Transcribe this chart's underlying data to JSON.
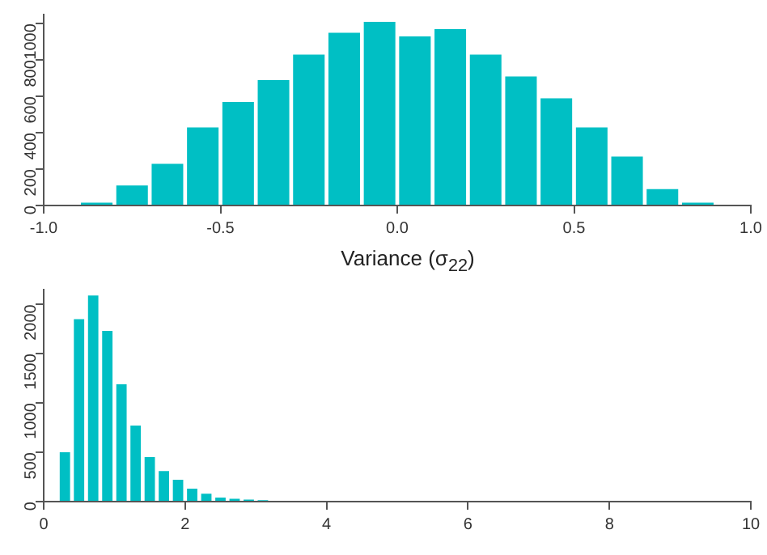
{
  "chart_data": [
    {
      "type": "histogram",
      "color": "#00bfc4",
      "bins": [
        -0.9,
        -0.8,
        -0.7,
        -0.6,
        -0.5,
        -0.4,
        -0.3,
        -0.2,
        -0.1,
        0.0,
        0.1,
        0.2,
        0.3,
        0.4,
        0.5,
        0.6,
        0.7,
        0.8,
        0.9
      ],
      "values": [
        20,
        120,
        240,
        440,
        580,
        700,
        840,
        960,
        1020,
        940,
        980,
        840,
        720,
        600,
        440,
        280,
        100,
        20
      ],
      "xlim": [
        -1,
        1
      ],
      "xticks": [
        {
          "value": -1,
          "label": "-1.0"
        },
        -0.5,
        {
          "value": 0,
          "label": "0.0"
        },
        0.5,
        {
          "value": 1,
          "label": "1.0"
        }
      ],
      "ylim": [
        0,
        1050
      ],
      "yticks": [
        0,
        200,
        400,
        600,
        800,
        1000
      ],
      "grid": false
    },
    {
      "type": "histogram",
      "title": "Variance (σ$_{22}$)",
      "color": "#00bfc4",
      "bins": [
        0.2,
        0.4,
        0.6,
        0.8,
        1.0,
        1.2,
        1.4,
        1.6,
        1.8,
        2.0,
        2.2,
        2.4,
        2.6,
        2.8,
        3.0,
        3.2
      ],
      "values": [
        520,
        1870,
        2110,
        1750,
        1210,
        790,
        470,
        330,
        240,
        150,
        100,
        60,
        40,
        20,
        10
      ],
      "xlim": [
        0,
        10
      ],
      "xticks": [
        0,
        2,
        4,
        6,
        8,
        10
      ],
      "ylim": [
        0,
        2150
      ],
      "yticks": [
        0,
        500,
        1000,
        1500,
        2000
      ],
      "grid": false
    }
  ]
}
